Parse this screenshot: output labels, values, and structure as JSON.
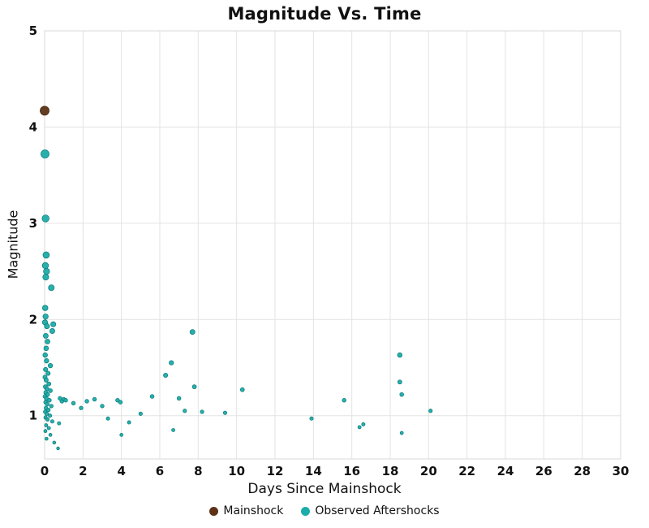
{
  "chart_data": {
    "type": "scatter",
    "title": "Magnitude Vs. Time",
    "xlabel": "Days Since Mainshock",
    "ylabel": "Magnitude",
    "xlim": [
      0,
      30
    ],
    "ylim": [
      0.55,
      5
    ],
    "xticks": [
      0,
      2,
      4,
      6,
      8,
      10,
      12,
      14,
      16,
      18,
      20,
      22,
      24,
      26,
      28,
      30
    ],
    "yticks": [
      1,
      2,
      3,
      4,
      5
    ],
    "grid": true,
    "grid_color": "#e3e3e3",
    "border_color": "#d8d8d8",
    "legend_position": "bottom",
    "marker_size": "scales with magnitude",
    "series": [
      {
        "name": "Mainshock",
        "color": "#5C3317",
        "stroke": "#3E2109",
        "points": [
          [
            0.0,
            4.17
          ]
        ]
      },
      {
        "name": "Observed Aftershocks",
        "color": "#1CACA9",
        "stroke": "#0E807E",
        "points": [
          [
            0.02,
            3.72
          ],
          [
            0.05,
            3.05
          ],
          [
            0.08,
            2.67
          ],
          [
            0.04,
            2.56
          ],
          [
            0.1,
            2.5
          ],
          [
            0.06,
            2.44
          ],
          [
            0.35,
            2.33
          ],
          [
            0.03,
            2.12
          ],
          [
            0.05,
            2.03
          ],
          [
            0.02,
            1.97
          ],
          [
            0.12,
            1.93
          ],
          [
            0.45,
            1.95
          ],
          [
            0.4,
            1.88
          ],
          [
            0.06,
            1.83
          ],
          [
            0.15,
            1.77
          ],
          [
            0.08,
            1.7
          ],
          [
            0.03,
            1.63
          ],
          [
            0.1,
            1.57
          ],
          [
            0.3,
            1.52
          ],
          [
            0.05,
            1.48
          ],
          [
            0.18,
            1.44
          ],
          [
            0.02,
            1.4
          ],
          [
            0.08,
            1.37
          ],
          [
            0.22,
            1.33
          ],
          [
            0.04,
            1.3
          ],
          [
            0.12,
            1.28
          ],
          [
            0.3,
            1.26
          ],
          [
            0.06,
            1.24
          ],
          [
            0.16,
            1.22
          ],
          [
            0.02,
            1.2
          ],
          [
            0.09,
            1.18
          ],
          [
            0.25,
            1.16
          ],
          [
            0.05,
            1.14
          ],
          [
            0.14,
            1.12
          ],
          [
            0.35,
            1.1
          ],
          [
            0.07,
            1.08
          ],
          [
            0.2,
            1.06
          ],
          [
            0.03,
            1.04
          ],
          [
            0.11,
            1.02
          ],
          [
            0.28,
            1.0
          ],
          [
            0.05,
            0.98
          ],
          [
            0.15,
            0.96
          ],
          [
            0.4,
            0.94
          ],
          [
            0.08,
            0.9
          ],
          [
            0.22,
            0.87
          ],
          [
            0.04,
            0.84
          ],
          [
            0.3,
            0.8
          ],
          [
            0.1,
            0.76
          ],
          [
            0.5,
            0.72
          ],
          [
            0.7,
            0.66
          ],
          [
            0.75,
            0.92
          ],
          [
            0.8,
            1.18
          ],
          [
            0.9,
            1.15
          ],
          [
            1.0,
            1.17
          ],
          [
            1.1,
            1.16
          ],
          [
            1.5,
            1.13
          ],
          [
            1.9,
            1.08
          ],
          [
            2.2,
            1.15
          ],
          [
            2.6,
            1.17
          ],
          [
            3.0,
            1.1
          ],
          [
            3.3,
            0.97
          ],
          [
            3.8,
            1.16
          ],
          [
            3.95,
            1.14
          ],
          [
            4.0,
            0.8
          ],
          [
            4.4,
            0.93
          ],
          [
            5.0,
            1.02
          ],
          [
            5.6,
            1.2
          ],
          [
            6.3,
            1.42
          ],
          [
            6.6,
            1.55
          ],
          [
            6.7,
            0.85
          ],
          [
            7.0,
            1.18
          ],
          [
            7.3,
            1.05
          ],
          [
            7.7,
            1.87
          ],
          [
            7.8,
            1.3
          ],
          [
            8.2,
            1.04
          ],
          [
            9.4,
            1.03
          ],
          [
            10.3,
            1.27
          ],
          [
            13.9,
            0.97
          ],
          [
            15.6,
            1.16
          ],
          [
            16.4,
            0.88
          ],
          [
            16.6,
            0.91
          ],
          [
            18.5,
            1.63
          ],
          [
            18.5,
            1.35
          ],
          [
            18.6,
            1.22
          ],
          [
            18.6,
            0.82
          ],
          [
            20.1,
            1.05
          ]
        ]
      }
    ]
  }
}
